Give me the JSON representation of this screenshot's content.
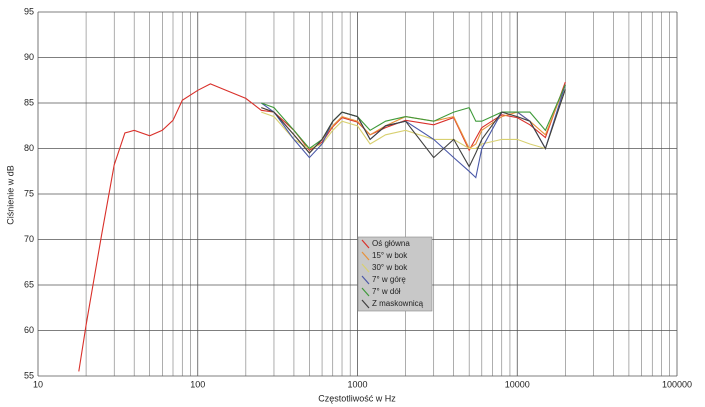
{
  "chart_data": {
    "type": "line",
    "x_label": "Częstotliwość w Hz",
    "y_label": "Ciśnienie w dB",
    "xscale": "log",
    "xlim": [
      10,
      100000
    ],
    "xticks": [
      10,
      100,
      1000,
      10000,
      100000
    ],
    "xminorticks": [
      20,
      30,
      40,
      50,
      60,
      70,
      80,
      90,
      200,
      300,
      400,
      500,
      600,
      700,
      800,
      900,
      2000,
      3000,
      4000,
      5000,
      6000,
      7000,
      8000,
      9000,
      20000,
      30000,
      40000,
      50000,
      60000,
      70000,
      80000,
      90000
    ],
    "ylim": [
      55,
      95
    ],
    "yticks": [
      55,
      60,
      65,
      70,
      75,
      80,
      85,
      90,
      95
    ],
    "grid": true,
    "legend": "center",
    "series": [
      {
        "name": "Oś główna",
        "color": "#d9302a",
        "x": [
          18,
          20,
          25,
          30,
          35,
          40,
          50,
          60,
          70,
          80,
          100,
          120,
          150,
          200,
          250,
          300,
          400,
          500,
          600,
          700,
          800,
          1000,
          1200,
          1500,
          2000,
          3000,
          4000,
          5000,
          6000,
          8000,
          10000,
          12000,
          15000,
          20000
        ],
        "values": [
          55.5,
          60.6,
          70.5,
          78.2,
          81.7,
          82,
          81.4,
          82,
          83.1,
          85.3,
          86.4,
          87.1,
          86.4,
          85.5,
          84.2,
          84,
          82,
          79.8,
          80.7,
          82.4,
          83.4,
          82.9,
          81.5,
          82.3,
          83.1,
          82.6,
          83.4,
          79.8,
          82.3,
          83.7,
          83.4,
          82.6,
          81.2,
          87.3
        ]
      },
      {
        "name": "15° w bok",
        "color": "#e8913a",
        "x": [
          250,
          300,
          400,
          500,
          600,
          700,
          800,
          1000,
          1200,
          1500,
          2000,
          3000,
          4000,
          5000,
          5500,
          6000,
          8000,
          10000,
          12000,
          15000,
          20000
        ],
        "values": [
          84.5,
          84,
          81.5,
          79.5,
          81,
          82.5,
          83.5,
          83,
          81.5,
          82.5,
          83.5,
          83,
          83.5,
          80,
          80.5,
          82,
          83.5,
          84,
          83,
          81.5,
          87
        ]
      },
      {
        "name": "30° w bok",
        "color": "#d8d070",
        "x": [
          250,
          300,
          400,
          500,
          600,
          700,
          800,
          1000,
          1200,
          1500,
          2000,
          3000,
          4000,
          5000,
          5500,
          6000,
          8000,
          10000,
          12000,
          15000,
          20000
        ],
        "values": [
          84,
          83.5,
          81,
          80,
          80.5,
          82,
          83,
          82.5,
          80.5,
          81.5,
          82,
          81,
          81,
          80,
          80,
          80.5,
          81,
          81,
          80.5,
          80,
          86.5
        ]
      },
      {
        "name": "7° w górę",
        "color": "#4a58a8",
        "x": [
          250,
          300,
          400,
          500,
          600,
          700,
          800,
          1000,
          1200,
          1500,
          2000,
          3000,
          4000,
          5000,
          5500,
          6000,
          8000,
          10000,
          12000,
          15000,
          20000
        ],
        "values": [
          85,
          84,
          81,
          79,
          80.5,
          83,
          84,
          83.5,
          81,
          82.5,
          83,
          81,
          79,
          77.5,
          76.8,
          80,
          84,
          84,
          83,
          80,
          87
        ]
      },
      {
        "name": "7° w dół",
        "color": "#3f9a3a",
        "x": [
          250,
          300,
          400,
          500,
          600,
          700,
          800,
          1000,
          1200,
          1500,
          2000,
          3000,
          4000,
          5000,
          5500,
          6000,
          8000,
          10000,
          12000,
          15000,
          20000
        ],
        "values": [
          85,
          84.5,
          82,
          80,
          81,
          83,
          84,
          83.5,
          82,
          83,
          83.5,
          83,
          84,
          84.5,
          83,
          83,
          84,
          84,
          84,
          82,
          87
        ]
      },
      {
        "name": "Z maskownicą",
        "color": "#404040",
        "x": [
          250,
          300,
          400,
          500,
          600,
          700,
          800,
          1000,
          1200,
          1500,
          2000,
          3000,
          4000,
          5000,
          5500,
          6000,
          8000,
          10000,
          12000,
          15000,
          20000
        ],
        "values": [
          84.5,
          84,
          81.5,
          79.5,
          81,
          83,
          84,
          83.5,
          81,
          82.5,
          83,
          79,
          81,
          78,
          79.5,
          81,
          84,
          83.5,
          83,
          80,
          86.5
        ]
      }
    ]
  }
}
